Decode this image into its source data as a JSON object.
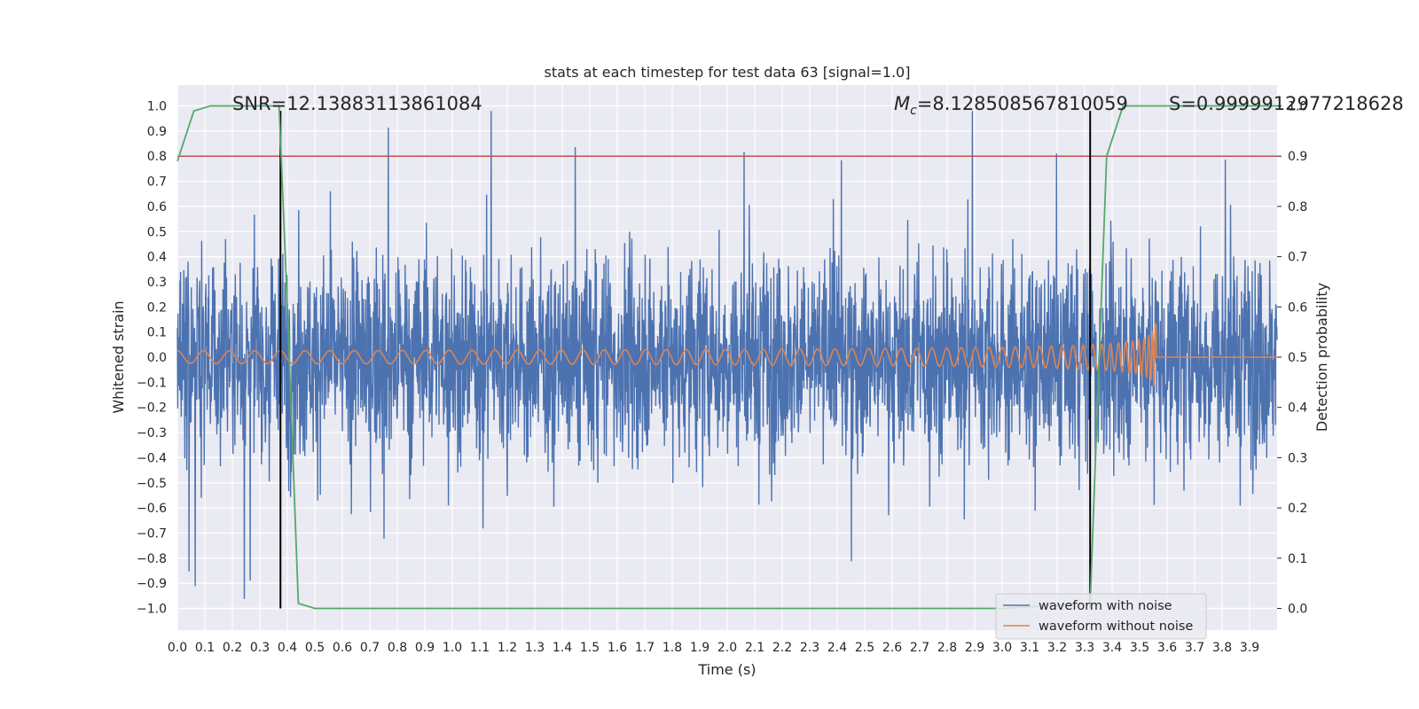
{
  "chart_data": {
    "type": "line",
    "title": "stats at each timestep for test data 63 [signal=1.0]",
    "xlabel": "Time (s)",
    "ylabel": "Whitened strain",
    "y2label": "Detection probability",
    "xlim": [
      0.0,
      4.0
    ],
    "ylim": [
      -1.1,
      1.1
    ],
    "y2lim": [
      -0.05,
      1.0
    ],
    "x_ticks": [
      "0.0",
      "0.1",
      "0.2",
      "0.3",
      "0.4",
      "0.5",
      "0.6",
      "0.7",
      "0.8",
      "0.9",
      "1.0",
      "1.1",
      "1.2",
      "1.3",
      "1.4",
      "1.5",
      "1.6",
      "1.7",
      "1.8",
      "1.9",
      "2.0",
      "2.1",
      "2.2",
      "2.3",
      "2.4",
      "2.5",
      "2.6",
      "2.7",
      "2.8",
      "2.9",
      "3.0",
      "3.1",
      "3.2",
      "3.3",
      "3.4",
      "3.5",
      "3.6",
      "3.7",
      "3.8",
      "3.9"
    ],
    "y_ticks": [
      "1.0",
      "0.9",
      "0.8",
      "0.7",
      "0.6",
      "0.5",
      "0.4",
      "0.3",
      "0.2",
      "0.1",
      "0.0",
      "−0.1",
      "−0.2",
      "−0.3",
      "−0.4",
      "−0.5",
      "−0.6",
      "−0.7",
      "−0.8",
      "−0.9",
      "−1.0"
    ],
    "y2_ticks": [
      "1.0",
      "0.9",
      "0.8",
      "0.7",
      "0.6",
      "0.5",
      "0.4",
      "0.3",
      "0.2",
      "0.1",
      "0.0"
    ],
    "grid": true,
    "legend_position": "lower right",
    "annotations": {
      "snr": "SNR=12.13883113861084",
      "mc_symbol": "M",
      "mc_subscript": "c",
      "mc_value": "=8.128508567810059",
      "s": "S=0.9999912977218628"
    },
    "series": [
      {
        "name": "waveform with noise",
        "color": "#4c72b0",
        "axis": "left",
        "kind": "noisy strain, amplitude roughly ±0.6 with spikes to ±1.0, from t=0.0 to t=4.0"
      },
      {
        "name": "waveform without noise",
        "color": "#dd8452",
        "axis": "left",
        "chirp": {
          "t_start": 0.0,
          "t_merger": 3.56,
          "t_end": 4.0,
          "amp_start": 0.025,
          "amp_peak_positive": 0.38,
          "amp_peak_negative": -0.35,
          "post_merger_value": 0.0
        }
      },
      {
        "color": "#55a868",
        "axis": "right",
        "x": [
          0.0,
          0.06,
          0.12,
          0.2,
          0.3,
          0.37,
          0.4,
          0.44,
          0.5,
          1.0,
          2.0,
          3.0,
          3.32,
          3.38,
          3.44,
          3.5,
          3.7,
          3.95,
          4.0
        ],
        "y": [
          0.89,
          0.99,
          1.0,
          1.0,
          1.0,
          1.0,
          0.6,
          0.01,
          0.0,
          0.0,
          0.0,
          0.0,
          0.01,
          0.9,
          1.0,
          1.0,
          1.0,
          1.0,
          1.0
        ]
      },
      {
        "color": "#c44e52",
        "axis": "right",
        "kind": "horizontal threshold",
        "y": 0.9
      }
    ],
    "vertical_markers": [
      {
        "x": 0.375,
        "color": "#000000",
        "y_from": -1.0,
        "y_to": 0.98
      },
      {
        "x": 3.32,
        "color": "#000000",
        "y_from": -1.0,
        "y_to": 0.98
      }
    ]
  }
}
